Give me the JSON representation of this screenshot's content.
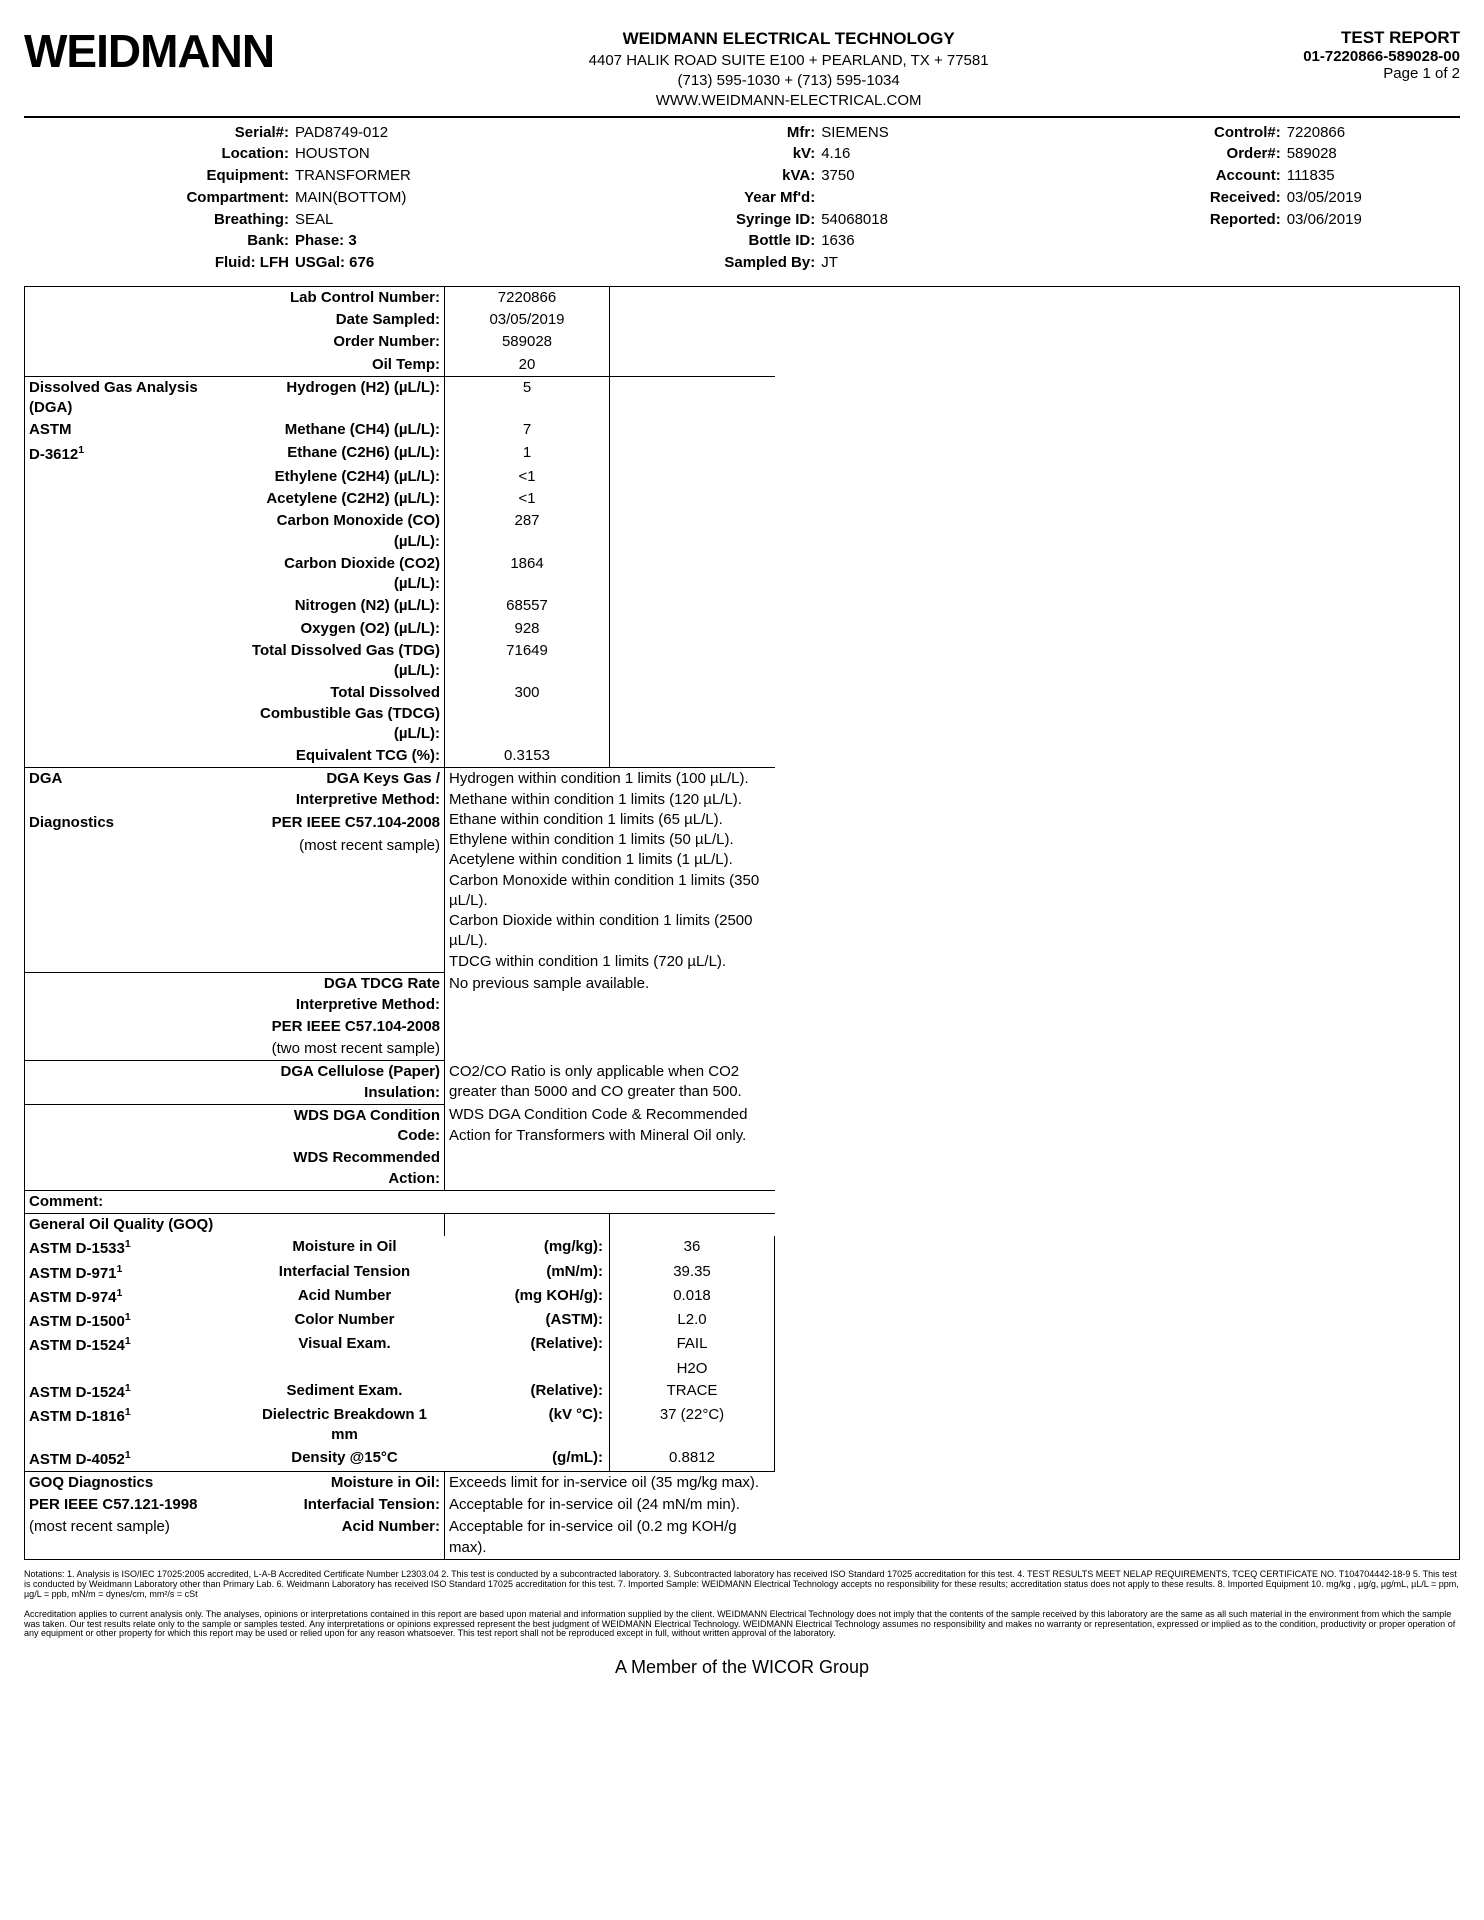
{
  "header": {
    "logo": "WEIDMANN",
    "company": "WEIDMANN ELECTRICAL TECHNOLOGY",
    "addr": "4407 HALIK ROAD SUITE E100 + PEARLAND, TX + 77581",
    "phone": "(713) 595-1030 + (713) 595-1034",
    "web": "WWW.WEIDMANN-ELECTRICAL.COM",
    "report_title": "TEST REPORT",
    "report_no": "01-7220866-589028-00",
    "page": "Page 1 of 2"
  },
  "info": {
    "serial_l": "Serial#:",
    "serial": "PAD8749-012",
    "location_l": "Location:",
    "location": "HOUSTON",
    "equipment_l": "Equipment:",
    "equipment": "TRANSFORMER",
    "compartment_l": "Compartment:",
    "compartment": "MAIN(BOTTOM)",
    "breathing_l": "Breathing:",
    "breathing": "SEAL",
    "bank_l": "Bank:",
    "bank": "Phase: 3",
    "fluid_l": "Fluid: LFH",
    "fluid": "USGal: 676",
    "mfr_l": "Mfr:",
    "mfr": "SIEMENS",
    "kv_l": "kV:",
    "kv": "4.16",
    "kva_l": "kVA:",
    "kva": "3750",
    "year_l": "Year Mf'd:",
    "year": "",
    "syringe_l": "Syringe ID:",
    "syringe": "54068018",
    "bottle_l": "Bottle ID:",
    "bottle": "1636",
    "sampled_l": "Sampled By:",
    "sampled": "JT",
    "control_l": "Control#:",
    "control": "7220866",
    "order_l": "Order#:",
    "order": "589028",
    "account_l": "Account:",
    "account": "111835",
    "received_l": "Received:",
    "received": "03/05/2019",
    "reported_l": "Reported:",
    "reported": "03/06/2019"
  },
  "top": {
    "lcn_l": "Lab Control Number:",
    "lcn": "7220866",
    "date_l": "Date Sampled:",
    "date": "03/05/2019",
    "on_l": "Order Number:",
    "on": "589028",
    "ot_l": "Oil Temp:",
    "ot": "20"
  },
  "dga": {
    "sec": "Dissolved Gas Analysis (DGA)",
    "astm": "ASTM",
    "std": "D-3612",
    "rows": [
      {
        "l": "Hydrogen (H2) (µL/L):",
        "v": "5"
      },
      {
        "l": "Methane (CH4) (µL/L):",
        "v": "7"
      },
      {
        "l": "Ethane (C2H6) (µL/L):",
        "v": "1"
      },
      {
        "l": "Ethylene (C2H4) (µL/L):",
        "v": "<1"
      },
      {
        "l": "Acetylene (C2H2) (µL/L):",
        "v": "<1"
      },
      {
        "l": "Carbon Monoxide (CO) (µL/L):",
        "v": "287"
      },
      {
        "l": "Carbon Dioxide (CO2) (µL/L):",
        "v": "1864"
      },
      {
        "l": "Nitrogen (N2) (µL/L):",
        "v": "68557"
      },
      {
        "l": "Oxygen (O2) (µL/L):",
        "v": "928"
      },
      {
        "l": "Total Dissolved Gas (TDG) (µL/L):",
        "v": "71649"
      },
      {
        "l": "Total Dissolved Combustible Gas (TDCG) (µL/L):",
        "v": "300"
      },
      {
        "l": "Equivalent TCG (%):",
        "v": "0.3153"
      }
    ]
  },
  "diag": {
    "sec1": "DGA",
    "sec2": "Diagnostics",
    "kg_l": "DGA Keys Gas / Interpretive Method:",
    "kg_std": "PER IEEE C57.104-2008",
    "kg_note": "(most recent sample)",
    "kg_lines": [
      "Hydrogen within condition 1 limits (100 µL/L).",
      "Methane within condition 1 limits (120 µL/L).",
      "Ethane within condition 1 limits (65 µL/L).",
      "Ethylene within condition 1 limits (50 µL/L).",
      "Acetylene within condition 1 limits (1 µL/L).",
      "Carbon Monoxide within condition 1 limits (350 µL/L).",
      "Carbon Dioxide within condition 1 limits (2500 µL/L).",
      "TDCG within condition 1 limits (720 µL/L)."
    ],
    "tdcg_l": "DGA TDCG Rate Interpretive Method:",
    "tdcg_std": "PER IEEE C57.104-2008",
    "tdcg_note": "(two most recent sample)",
    "tdcg_v": "No previous sample available.",
    "cell_l": "DGA Cellulose (Paper) Insulation:",
    "cell_v": "CO2/CO Ratio is only applicable when CO2 greater than 5000 and CO greater than 500.",
    "wds_l": "WDS DGA Condition Code:",
    "wds_v": "WDS DGA Condition Code & Recommended Action for Transformers with Mineral Oil only.",
    "wds2_l": "WDS Recommended Action:"
  },
  "comment_l": "Comment:",
  "goq": {
    "title": "General Oil Quality (GOQ)",
    "rows": [
      {
        "s": "ASTM D-1533",
        "p": "Moisture in Oil",
        "u": "(mg/kg):",
        "v": "36"
      },
      {
        "s": "ASTM D-971",
        "p": "Interfacial Tension",
        "u": "(mN/m):",
        "v": "39.35"
      },
      {
        "s": "ASTM D-974",
        "p": "Acid Number",
        "u": "(mg KOH/g):",
        "v": "0.018"
      },
      {
        "s": "ASTM D-1500",
        "p": "Color Number",
        "u": "(ASTM):",
        "v": "L2.0"
      },
      {
        "s": "ASTM D-1524",
        "p": "Visual Exam.",
        "u": "(Relative):",
        "v": "FAIL"
      },
      {
        "s": "",
        "p": "",
        "u": "",
        "v": "H2O"
      },
      {
        "s": "ASTM D-1524",
        "p": "Sediment Exam.",
        "u": "(Relative):",
        "v": "TRACE"
      },
      {
        "s": "ASTM D-1816",
        "p": "Dielectric Breakdown 1 mm",
        "u": "(kV °C):",
        "v": "37 (22°C)"
      },
      {
        "s": "ASTM D-4052",
        "p": "Density @15°C",
        "u": "(g/mL):",
        "v": "0.8812"
      }
    ]
  },
  "goqd": {
    "sec": "GOQ Diagnostics",
    "std": "PER IEEE C57.121-1998",
    "note": "(most recent sample)",
    "m_l": "Moisture in Oil:",
    "m_v": "Exceeds limit for in-service oil (35 mg/kg max).",
    "it_l": "Interfacial Tension:",
    "it_v": "Acceptable for in-service oil (24 mN/m min).",
    "an_l": "Acid Number:",
    "an_v": "Acceptable for in-service oil (0.2 mg KOH/g max)."
  },
  "notations": "Notations: 1. Analysis is ISO/IEC 17025:2005 accredited, L-A-B Accredited Certificate Number L2303.04  2. This test is conducted by a subcontracted laboratory. 3. Subcontracted laboratory has received ISO Standard 17025 accreditation for this test. 4. TEST RESULTS MEET NELAP REQUIREMENTS, TCEQ CERTIFICATE NO. T104704442-18-9  5. This test is conducted by Weidmann Laboratory other than Primary Lab. 6. Weidmann Laboratory has received ISO Standard 17025 accreditation for this test. 7. Imported Sample: WEIDMANN Electrical Technology accepts no responsibility for these results; accreditation status does not apply to these results. 8. Imported Equipment 10. mg/kg , µg/g, µg/mL, µL/L = ppm,  µg/L = ppb, mN/m = dynes/cm, mm²/s = cSt",
  "accred": "Accreditation applies to current analysis only. The analyses, opinions or interpretations contained in this report are based upon material and information supplied by the client. WEIDMANN Electrical Technology does not imply that the contents of the sample received by this laboratory are the same as all such material in the environment from which the sample was taken. Our test results relate only to the sample or samples  tested. Any interpretations or opinions expressed represent the best judgment of WEIDMANN Electrical Technology. WEIDMANN Electrical Technology assumes no responsibility and makes no warranty or representation, expressed or implied as to the condition, productivity or proper operation of any equipment or other property for which this report may be used or relied upon for any reason whatsoever.  This test report shall not be reproduced except in full, without written approval of the laboratory.",
  "footer": "A Member of the WICOR Group"
}
